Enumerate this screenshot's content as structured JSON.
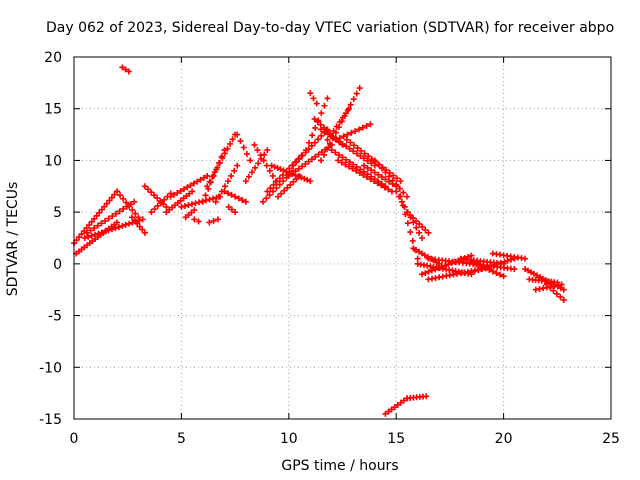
{
  "chart_data": {
    "type": "scatter",
    "title": "Day 062 of 2023, Sidereal Day-to-day VTEC variation (SDTVAR) for receiver abpo",
    "xlabel": "GPS time / hours",
    "ylabel": "SDTVAR / TECUs",
    "xlim": [
      0,
      25
    ],
    "ylim": [
      -15,
      20
    ],
    "xticks": [
      0,
      5,
      10,
      15,
      20,
      25
    ],
    "yticks": [
      -15,
      -10,
      -5,
      0,
      5,
      10,
      15,
      20
    ],
    "xtick_labels": [
      "0",
      "5",
      "10",
      "15",
      "20",
      "25"
    ],
    "ytick_labels": [
      "-15",
      "-10",
      "-5",
      "0",
      "5",
      "10",
      "15",
      "20"
    ],
    "grid": true,
    "legend": "none",
    "marker": "plus",
    "series": [
      {
        "name": "SDTVAR",
        "color": "#ff0000",
        "tracks": [
          {
            "t0": 0.0,
            "t1": 2.0,
            "v0": 2.0,
            "v1": 7.0,
            "n": 18
          },
          {
            "t0": 2.0,
            "t1": 3.0,
            "v0": 7.0,
            "v1": 4.5,
            "n": 8
          },
          {
            "t0": 0.1,
            "t1": 2.0,
            "v0": 1.0,
            "v1": 4.0,
            "n": 16
          },
          {
            "t0": 0.5,
            "t1": 3.2,
            "v0": 2.5,
            "v1": 4.3,
            "n": 18
          },
          {
            "t0": 0.6,
            "t1": 2.8,
            "v0": 3.0,
            "v1": 6.0,
            "n": 14
          },
          {
            "t0": 2.7,
            "t1": 3.3,
            "v0": 4.5,
            "v1": 3.0,
            "n": 6
          },
          {
            "t0": 2.25,
            "t1": 2.55,
            "v0": 19.0,
            "v1": 18.6,
            "n": 3
          },
          {
            "t0": 3.3,
            "t1": 4.3,
            "v0": 7.5,
            "v1": 5.5,
            "n": 8
          },
          {
            "t0": 3.6,
            "t1": 4.5,
            "v0": 5.0,
            "v1": 6.8,
            "n": 7
          },
          {
            "t0": 4.3,
            "t1": 5.5,
            "v0": 5.0,
            "v1": 7.0,
            "n": 10
          },
          {
            "t0": 4.5,
            "t1": 6.2,
            "v0": 6.5,
            "v1": 8.5,
            "n": 12
          },
          {
            "t0": 5.0,
            "t1": 6.8,
            "v0": 5.5,
            "v1": 6.5,
            "n": 12
          },
          {
            "t0": 5.2,
            "t1": 5.6,
            "v0": 4.5,
            "v1": 5.2,
            "n": 4
          },
          {
            "t0": 5.6,
            "t1": 5.8,
            "v0": 4.3,
            "v1": 4.1,
            "n": 2
          },
          {
            "t0": 6.3,
            "t1": 6.7,
            "v0": 4.0,
            "v1": 4.3,
            "n": 3
          },
          {
            "t0": 6.2,
            "t1": 7.5,
            "v0": 7.5,
            "v1": 12.5,
            "n": 12
          },
          {
            "t0": 6.0,
            "t1": 7.0,
            "v0": 6.0,
            "v1": 11.0,
            "n": 9
          },
          {
            "t0": 6.6,
            "t1": 7.6,
            "v0": 6.0,
            "v1": 9.5,
            "n": 8
          },
          {
            "t0": 7.0,
            "t1": 8.0,
            "v0": 7.0,
            "v1": 6.0,
            "n": 7
          },
          {
            "t0": 7.6,
            "t1": 8.2,
            "v0": 12.5,
            "v1": 10.0,
            "n": 5
          },
          {
            "t0": 7.2,
            "t1": 7.5,
            "v0": 5.5,
            "v1": 5.0,
            "n": 3
          },
          {
            "t0": 8.0,
            "t1": 9.0,
            "v0": 8.0,
            "v1": 11.0,
            "n": 8
          },
          {
            "t0": 8.4,
            "t1": 9.4,
            "v0": 11.5,
            "v1": 8.0,
            "n": 8
          },
          {
            "t0": 8.8,
            "t1": 10.2,
            "v0": 6.0,
            "v1": 9.0,
            "n": 10
          },
          {
            "t0": 9.0,
            "t1": 10.6,
            "v0": 7.0,
            "v1": 10.5,
            "n": 12
          },
          {
            "t0": 9.2,
            "t1": 11.0,
            "v0": 9.5,
            "v1": 8.0,
            "n": 14
          },
          {
            "t0": 9.5,
            "t1": 10.5,
            "v0": 6.5,
            "v1": 8.5,
            "n": 8
          },
          {
            "t0": 10.0,
            "t1": 12.0,
            "v0": 8.5,
            "v1": 11.5,
            "n": 14
          },
          {
            "t0": 10.2,
            "t1": 11.8,
            "v0": 9.5,
            "v1": 13.0,
            "n": 12
          },
          {
            "t0": 10.8,
            "t1": 11.8,
            "v0": 11.0,
            "v1": 16.0,
            "n": 8
          },
          {
            "t0": 11.0,
            "t1": 11.3,
            "v0": 16.5,
            "v1": 15.5,
            "n": 3
          },
          {
            "t0": 11.2,
            "t1": 12.5,
            "v0": 14.0,
            "v1": 11.5,
            "n": 10
          },
          {
            "t0": 11.5,
            "t1": 13.3,
            "v0": 10.0,
            "v1": 17.0,
            "n": 14
          },
          {
            "t0": 11.8,
            "t1": 12.8,
            "v0": 12.0,
            "v1": 15.0,
            "n": 8
          },
          {
            "t0": 11.5,
            "t1": 14.0,
            "v0": 13.0,
            "v1": 9.5,
            "n": 16
          },
          {
            "t0": 12.2,
            "t1": 13.8,
            "v0": 12.0,
            "v1": 13.5,
            "n": 10
          },
          {
            "t0": 12.0,
            "t1": 14.5,
            "v0": 11.0,
            "v1": 7.5,
            "n": 16
          },
          {
            "t0": 12.3,
            "t1": 14.8,
            "v0": 10.0,
            "v1": 7.0,
            "n": 16
          },
          {
            "t0": 12.7,
            "t1": 15.2,
            "v0": 12.0,
            "v1": 8.0,
            "n": 16
          },
          {
            "t0": 13.5,
            "t1": 15.0,
            "v0": 9.5,
            "v1": 7.5,
            "n": 10
          },
          {
            "t0": 14.0,
            "t1": 15.5,
            "v0": 10.0,
            "v1": 6.5,
            "n": 10
          },
          {
            "t0": 15.0,
            "t1": 16.2,
            "v0": 7.0,
            "v1": 2.5,
            "n": 10
          },
          {
            "t0": 15.2,
            "t1": 16.0,
            "v0": 6.5,
            "v1": 0.5,
            "n": 8
          },
          {
            "t0": 15.5,
            "t1": 16.5,
            "v0": 5.0,
            "v1": 3.0,
            "n": 8
          },
          {
            "t0": 15.8,
            "t1": 17.0,
            "v0": 1.5,
            "v1": 0.0,
            "n": 10
          },
          {
            "t0": 16.0,
            "t1": 18.5,
            "v0": 0.0,
            "v1": -1.0,
            "n": 18
          },
          {
            "t0": 16.2,
            "t1": 18.5,
            "v0": -1.0,
            "v1": 0.8,
            "n": 16
          },
          {
            "t0": 16.5,
            "t1": 20.5,
            "v0": 0.5,
            "v1": -0.5,
            "n": 26
          },
          {
            "t0": 16.5,
            "t1": 19.0,
            "v0": -1.5,
            "v1": -0.5,
            "n": 16
          },
          {
            "t0": 18.0,
            "t1": 20.0,
            "v0": 0.5,
            "v1": 0.0,
            "n": 14
          },
          {
            "t0": 18.5,
            "t1": 20.5,
            "v0": -0.8,
            "v1": 0.5,
            "n": 14
          },
          {
            "t0": 18.5,
            "t1": 20.0,
            "v0": 0.2,
            "v1": -1.2,
            "n": 10
          },
          {
            "t0": 19.5,
            "t1": 21.0,
            "v0": 1.0,
            "v1": 0.5,
            "n": 10
          },
          {
            "t0": 21.0,
            "t1": 22.8,
            "v0": -0.5,
            "v1": -2.5,
            "n": 14
          },
          {
            "t0": 21.2,
            "t1": 22.5,
            "v0": -1.5,
            "v1": -1.8,
            "n": 10
          },
          {
            "t0": 22.0,
            "t1": 22.8,
            "v0": -2.0,
            "v1": -3.5,
            "n": 6
          },
          {
            "t0": 21.5,
            "t1": 22.7,
            "v0": -2.5,
            "v1": -2.0,
            "n": 8
          },
          {
            "t0": 14.5,
            "t1": 15.5,
            "v0": -14.5,
            "v1": -13.0,
            "n": 8
          },
          {
            "t0": 15.5,
            "t1": 16.4,
            "v0": -13.0,
            "v1": -12.8,
            "n": 7
          }
        ]
      }
    ]
  }
}
